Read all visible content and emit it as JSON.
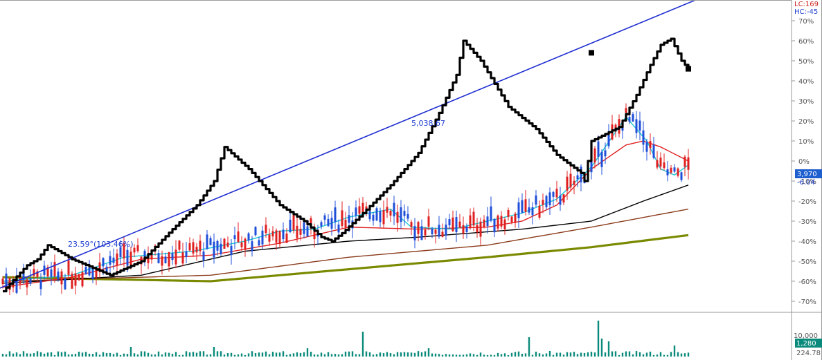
{
  "chart_data": {
    "type": "candlestick",
    "header_lc": "LC:169",
    "header_hc": "HC:-45",
    "y_ticks": [
      "70%",
      "60%",
      "50%",
      "40%",
      "30%",
      "20%",
      "10%",
      "0%",
      "-10%",
      "-20%",
      "-30%",
      "-40%",
      "-50%",
      "-60%",
      "-70%"
    ],
    "ylim_percent": [
      -74,
      74
    ],
    "current_price_label": "3,970",
    "current_pct_label": "-6.04",
    "trendline_label": "5,038.67",
    "start_label": "23.59°(103.46%)",
    "volume_ticks": [
      "10,000"
    ],
    "volume_current_label": "1,280",
    "volume_bottom_label": "224.78",
    "colors": {
      "up": "#e02020",
      "down": "#1f4fd8",
      "ma5": "#18c8d8",
      "ma20": "#e02020",
      "ma60": "#000000",
      "ma120": "#8b3a1a",
      "ma240": "#7a8a00",
      "trendline": "#1f2fd0",
      "pattern": "#000000",
      "volume": "#0a8a7a",
      "price_badge": "#1e5fd0"
    },
    "pattern_path_pct": [
      [
        0,
        -65
      ],
      [
        7,
        -52
      ],
      [
        10,
        -49
      ],
      [
        13,
        -42
      ],
      [
        20,
        -49
      ],
      [
        31,
        -57
      ],
      [
        40,
        -50
      ],
      [
        49,
        -34
      ],
      [
        56,
        -22
      ],
      [
        61,
        -10
      ],
      [
        64,
        7
      ],
      [
        71,
        -4
      ],
      [
        80,
        -22
      ],
      [
        87,
        -30
      ],
      [
        92,
        -38
      ],
      [
        95,
        -40
      ],
      [
        98,
        -36
      ],
      [
        104,
        -26
      ],
      [
        112,
        -12
      ],
      [
        120,
        4
      ],
      [
        126,
        24
      ],
      [
        131,
        43
      ],
      [
        133,
        60
      ],
      [
        138,
        50
      ],
      [
        146,
        27
      ],
      [
        154,
        16
      ],
      [
        160,
        3
      ],
      [
        167,
        -6
      ],
      [
        168,
        -10
      ],
      [
        170,
        10
      ],
      [
        178,
        17
      ],
      [
        183,
        33
      ],
      [
        187,
        48
      ],
      [
        190,
        58
      ],
      [
        193,
        61
      ],
      [
        196,
        50
      ],
      [
        198,
        46
      ]
    ],
    "end_markers_pct": [
      [
        170,
        54
      ],
      [
        198,
        46
      ]
    ],
    "trendline_pct": [
      [
        -10,
        -70
      ],
      [
        201,
        81
      ]
    ]
  }
}
